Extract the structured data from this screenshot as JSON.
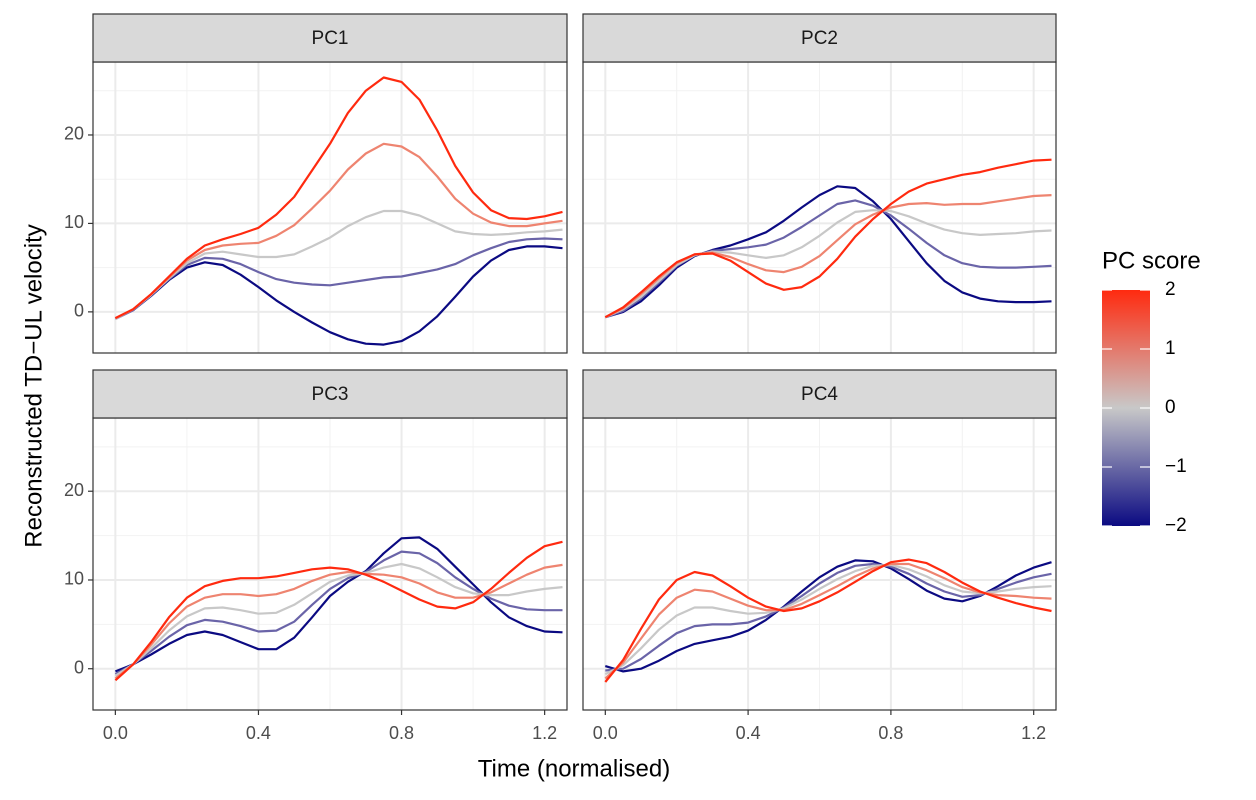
{
  "ylabel": "Reconstructed TD−UL velocity",
  "xlabel": "Time (normalised)",
  "legend": {
    "title": "PC score",
    "lim": [
      -2,
      2
    ],
    "ticks": [
      {
        "value": -2,
        "label": "−2"
      },
      {
        "value": -1,
        "label": "−1"
      },
      0,
      1,
      2
    ],
    "colors": [
      "#0b0a82",
      "#c8c8c8",
      "#ff2a0f"
    ]
  },
  "chart_data": [
    {
      "type": "line",
      "title": "PC1",
      "xlim": [
        -0.0625,
        1.2625
      ],
      "ylim": [
        -4.65,
        28.25
      ],
      "xticks": [
        {
          "value": 0,
          "label": "0.0"
        },
        0.4,
        0.8,
        1.2
      ],
      "xminor": [
        0.2,
        0.6,
        1.0
      ],
      "yticks": [
        0,
        10,
        20
      ],
      "yminor": [
        5,
        15,
        25
      ],
      "grid": true,
      "y_tick_labels": true,
      "x_tick_labels": false,
      "x": [
        0,
        0.05,
        0.1,
        0.15,
        0.2,
        0.25,
        0.3,
        0.35,
        0.4,
        0.45,
        0.5,
        0.55,
        0.6,
        0.65,
        0.7,
        0.75,
        0.8,
        0.85,
        0.9,
        0.95,
        1.0,
        1.05,
        1.1,
        1.15,
        1.2,
        1.25
      ],
      "series": [
        {
          "score": -2,
          "color": "#0b0a82",
          "values": [
            -0.8,
            0.2,
            1.8,
            3.6,
            5,
            5.6,
            5.3,
            4.2,
            2.8,
            1.3,
            0,
            -1.2,
            -2.3,
            -3.1,
            -3.6,
            -3.7,
            -3.3,
            -2.2,
            -0.5,
            1.7,
            4,
            5.8,
            7,
            7.4,
            7.4,
            7.2
          ]
        },
        {
          "score": -1,
          "color": "#6a64a8",
          "values": [
            -0.8,
            0.2,
            1.9,
            3.7,
            5.3,
            6.1,
            6,
            5.4,
            4.5,
            3.7,
            3.3,
            3.1,
            3,
            3.3,
            3.6,
            3.9,
            4,
            4.4,
            4.8,
            5.4,
            6.4,
            7.2,
            7.9,
            8.2,
            8.3,
            8.2
          ]
        },
        {
          "score": 0,
          "color": "#c8c8c8",
          "values": [
            -0.8,
            0.3,
            1.9,
            3.8,
            5.5,
            6.6,
            6.8,
            6.5,
            6.2,
            6.2,
            6.5,
            7.4,
            8.4,
            9.7,
            10.7,
            11.4,
            11.4,
            10.9,
            10,
            9.1,
            8.8,
            8.7,
            8.8,
            9,
            9.1,
            9.3
          ]
        },
        {
          "score": 1,
          "color": "#ee8470",
          "values": [
            -0.7,
            0.3,
            2,
            3.9,
            5.8,
            7,
            7.5,
            7.7,
            7.8,
            8.6,
            9.8,
            11.7,
            13.7,
            16.1,
            17.9,
            19,
            18.7,
            17.5,
            15.3,
            12.8,
            11.1,
            10.1,
            9.7,
            9.7,
            10,
            10.3
          ]
        },
        {
          "score": 2,
          "color": "#ff2a0f",
          "values": [
            -0.7,
            0.3,
            2,
            4,
            6,
            7.5,
            8.2,
            8.8,
            9.5,
            11,
            13,
            16,
            19,
            22.5,
            25,
            26.5,
            26,
            24,
            20.5,
            16.5,
            13.5,
            11.5,
            10.6,
            10.5,
            10.8,
            11.3
          ]
        }
      ]
    },
    {
      "type": "line",
      "title": "PC2",
      "xlim": [
        -0.0625,
        1.2625
      ],
      "ylim": [
        -4.65,
        28.25
      ],
      "xticks": [
        {
          "value": 0,
          "label": "0.0"
        },
        0.4,
        0.8,
        1.2
      ],
      "xminor": [
        0.2,
        0.6,
        1.0
      ],
      "yticks": [
        0,
        10,
        20
      ],
      "yminor": [
        5,
        15,
        25
      ],
      "grid": true,
      "y_tick_labels": false,
      "x_tick_labels": false,
      "x": [
        0,
        0.05,
        0.1,
        0.15,
        0.2,
        0.25,
        0.3,
        0.35,
        0.4,
        0.45,
        0.5,
        0.55,
        0.6,
        0.65,
        0.7,
        0.75,
        0.8,
        0.85,
        0.9,
        0.95,
        1.0,
        1.05,
        1.1,
        1.15,
        1.2,
        1.25
      ],
      "series": [
        {
          "score": -2,
          "color": "#0b0a82",
          "values": [
            -0.6,
            0,
            1.2,
            3,
            5,
            6.3,
            7,
            7.5,
            8.2,
            9,
            10.3,
            11.8,
            13.2,
            14.2,
            14,
            12.5,
            10.5,
            8,
            5.5,
            3.5,
            2.2,
            1.5,
            1.2,
            1.1,
            1.1,
            1.2
          ]
        },
        {
          "score": -1,
          "color": "#6a64a8",
          "values": [
            -0.6,
            0.1,
            1.5,
            3.3,
            5.2,
            6.4,
            6.9,
            7.1,
            7.3,
            7.6,
            8.4,
            9.6,
            10.9,
            12.2,
            12.6,
            12,
            10.9,
            9.4,
            7.8,
            6.4,
            5.5,
            5.1,
            5,
            5,
            5.1,
            5.2
          ]
        },
        {
          "score": 0,
          "color": "#c8c8c8",
          "values": [
            -0.6,
            0.3,
            1.7,
            3.5,
            5.3,
            6.4,
            6.8,
            6.7,
            6.4,
            6.1,
            6.4,
            7.3,
            8.6,
            10.1,
            11.3,
            11.5,
            11.4,
            10.8,
            10,
            9.3,
            8.9,
            8.7,
            8.8,
            8.9,
            9.1,
            9.2
          ]
        },
        {
          "score": 1,
          "color": "#ee8470",
          "values": [
            -0.6,
            0.4,
            2,
            3.8,
            5.5,
            6.5,
            6.7,
            6.2,
            5.4,
            4.7,
            4.5,
            5.1,
            6.3,
            8.1,
            9.9,
            11,
            11.8,
            12.2,
            12.3,
            12.1,
            12.2,
            12.2,
            12.5,
            12.8,
            13.1,
            13.2
          ]
        },
        {
          "score": 2,
          "color": "#ff2a0f",
          "values": [
            -0.6,
            0.5,
            2.2,
            4,
            5.6,
            6.5,
            6.6,
            5.8,
            4.5,
            3.2,
            2.5,
            2.8,
            4,
            6,
            8.5,
            10.5,
            12.2,
            13.6,
            14.5,
            15,
            15.5,
            15.8,
            16.3,
            16.7,
            17.1,
            17.2
          ]
        }
      ]
    },
    {
      "type": "line",
      "title": "PC3",
      "xlim": [
        -0.0625,
        1.2625
      ],
      "ylim": [
        -4.65,
        28.25
      ],
      "xticks": [
        {
          "value": 0,
          "label": "0.0"
        },
        0.4,
        0.8,
        1.2
      ],
      "xminor": [
        0.2,
        0.6,
        1.0
      ],
      "yticks": [
        0,
        10,
        20
      ],
      "yminor": [
        5,
        15,
        25
      ],
      "grid": true,
      "y_tick_labels": true,
      "x_tick_labels": true,
      "x": [
        0,
        0.05,
        0.1,
        0.15,
        0.2,
        0.25,
        0.3,
        0.35,
        0.4,
        0.45,
        0.5,
        0.55,
        0.6,
        0.65,
        0.7,
        0.75,
        0.8,
        0.85,
        0.9,
        0.95,
        1.0,
        1.05,
        1.1,
        1.15,
        1.2,
        1.25
      ],
      "series": [
        {
          "score": -2,
          "color": "#0b0a82",
          "values": [
            -0.3,
            0.5,
            1.6,
            2.8,
            3.8,
            4.2,
            3.8,
            3,
            2.2,
            2.2,
            3.5,
            5.8,
            8.2,
            9.8,
            11,
            13,
            14.7,
            14.8,
            13.5,
            11.5,
            9.5,
            7.5,
            5.8,
            4.8,
            4.2,
            4.1
          ]
        },
        {
          "score": -1,
          "color": "#6a64a8",
          "values": [
            -0.6,
            0.5,
            2,
            3.6,
            4.9,
            5.5,
            5.3,
            4.8,
            4.2,
            4.3,
            5.3,
            7.2,
            9,
            10.2,
            10.9,
            12.2,
            13.2,
            13,
            11.9,
            10.3,
            9,
            7.9,
            7.1,
            6.7,
            6.6,
            6.6
          ]
        },
        {
          "score": 0,
          "color": "#c8c8c8",
          "values": [
            -0.8,
            0.5,
            2.3,
            4.3,
            5.9,
            6.8,
            6.9,
            6.6,
            6.2,
            6.3,
            7.2,
            8.5,
            9.8,
            10.5,
            10.8,
            11.4,
            11.8,
            11.3,
            10.3,
            9.2,
            8.5,
            8.3,
            8.3,
            8.7,
            9,
            9.2
          ]
        },
        {
          "score": 1,
          "color": "#ee8470",
          "values": [
            -1.1,
            0.5,
            2.7,
            5.1,
            7,
            8,
            8.4,
            8.4,
            8.2,
            8.4,
            9,
            9.9,
            10.6,
            10.9,
            10.7,
            10.6,
            10.3,
            9.6,
            8.6,
            8,
            8,
            8.6,
            9.6,
            10.6,
            11.4,
            11.7
          ]
        },
        {
          "score": 2,
          "color": "#ff2a0f",
          "values": [
            -1.3,
            0.5,
            3,
            5.8,
            8,
            9.3,
            9.9,
            10.2,
            10.2,
            10.4,
            10.8,
            11.2,
            11.4,
            11.2,
            10.6,
            9.8,
            8.8,
            7.8,
            7,
            6.8,
            7.5,
            9,
            10.8,
            12.5,
            13.8,
            14.3
          ]
        }
      ]
    },
    {
      "type": "line",
      "title": "PC4",
      "xlim": [
        -0.0625,
        1.2625
      ],
      "ylim": [
        -4.65,
        28.25
      ],
      "xticks": [
        {
          "value": 0,
          "label": "0.0"
        },
        0.4,
        0.8,
        1.2
      ],
      "xminor": [
        0.2,
        0.6,
        1.0
      ],
      "yticks": [
        0,
        10,
        20
      ],
      "yminor": [
        5,
        15,
        25
      ],
      "grid": true,
      "y_tick_labels": false,
      "x_tick_labels": true,
      "x": [
        0,
        0.05,
        0.1,
        0.15,
        0.2,
        0.25,
        0.3,
        0.35,
        0.4,
        0.45,
        0.5,
        0.55,
        0.6,
        0.65,
        0.7,
        0.75,
        0.8,
        0.85,
        0.9,
        0.95,
        1.0,
        1.05,
        1.1,
        1.15,
        1.2,
        1.25
      ],
      "series": [
        {
          "score": -2,
          "color": "#0b0a82",
          "values": [
            0.3,
            -0.3,
            0,
            0.9,
            2,
            2.8,
            3.2,
            3.6,
            4.3,
            5.5,
            7,
            8.7,
            10.3,
            11.5,
            12.2,
            12.1,
            11.3,
            10.1,
            8.8,
            7.9,
            7.6,
            8.2,
            9.3,
            10.5,
            11.4,
            12
          ]
        },
        {
          "score": -1,
          "color": "#6a64a8",
          "values": [
            -0.2,
            0,
            1.1,
            2.6,
            4,
            4.8,
            5,
            5,
            5.2,
            5.9,
            6.9,
            8.2,
            9.6,
            10.8,
            11.6,
            11.8,
            11.5,
            10.7,
            9.6,
            8.7,
            8.1,
            8.3,
            9,
            9.7,
            10.3,
            10.7
          ]
        },
        {
          "score": 0,
          "color": "#c8c8c8",
          "values": [
            -0.6,
            0.4,
            2.3,
            4.4,
            6,
            6.9,
            6.9,
            6.5,
            6.2,
            6.3,
            6.8,
            7.8,
            9,
            10.1,
            11,
            11.6,
            11.7,
            11.2,
            10.4,
            9.4,
            8.7,
            8.5,
            8.7,
            9,
            9.2,
            9.3
          ]
        },
        {
          "score": 1,
          "color": "#ee8470",
          "values": [
            -1.1,
            0.7,
            3.4,
            6.1,
            8,
            8.9,
            8.7,
            7.9,
            7.1,
            6.6,
            6.6,
            7.3,
            8.3,
            9.3,
            10.4,
            11.3,
            11.8,
            11.8,
            11.1,
            10.2,
            9.2,
            8.6,
            8.3,
            8.2,
            8,
            7.9
          ]
        },
        {
          "score": 2,
          "color": "#ff2a0f",
          "values": [
            -1.5,
            1,
            4.5,
            7.8,
            10,
            10.9,
            10.5,
            9.3,
            8,
            7,
            6.5,
            6.8,
            7.6,
            8.6,
            9.8,
            11,
            12,
            12.3,
            11.9,
            10.9,
            9.7,
            8.7,
            8,
            7.4,
            6.9,
            6.5
          ]
        }
      ]
    }
  ]
}
